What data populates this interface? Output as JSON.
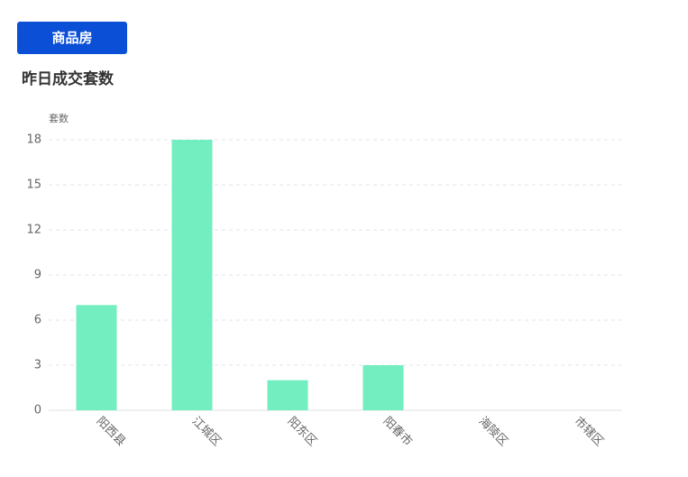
{
  "tab": "商品房",
  "chart_data": {
    "type": "bar",
    "title": "昨日成交套数",
    "y_label": "套数",
    "categories": [
      "阳西县",
      "江城区",
      "阳东区",
      "阳春市",
      "海陵区",
      "市辖区"
    ],
    "values": [
      7,
      18,
      2,
      3,
      0,
      0
    ],
    "color": "#72eec0",
    "ylim": [
      0,
      18
    ],
    "yticks": [
      0,
      3,
      6,
      9,
      12,
      15,
      18
    ],
    "grid": true
  }
}
